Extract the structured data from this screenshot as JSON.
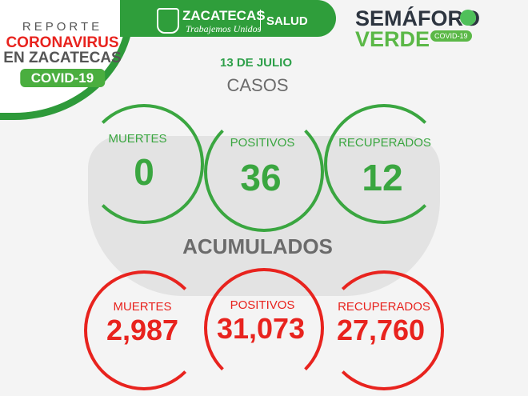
{
  "header": {
    "reporte": "REPORTE",
    "coronavirus": "CORONAVIRUS",
    "en_zacatecas": "EN ZACATECAS",
    "covid": "COVID-19",
    "gov_name": "ZACATECAS",
    "gov_slogan": "Trabajemos Unidos",
    "salud": "SALUD",
    "semaforo": "SEMÁFORO",
    "verde": "VERDE",
    "semaforo_badge": "COVID-19"
  },
  "date": "13 DE JULIO",
  "casos": {
    "title": "CASOS",
    "items": [
      {
        "label": "MUERTES",
        "value": "0"
      },
      {
        "label": "POSITIVOS",
        "value": "36"
      },
      {
        "label": "RECUPERADOS",
        "value": "12"
      }
    ]
  },
  "acumulados": {
    "title": "ACUMULADOS",
    "items": [
      {
        "label": "MUERTES",
        "value": "2,987"
      },
      {
        "label": "POSITIVOS",
        "value": "31,073"
      },
      {
        "label": "RECUPERADOS",
        "value": "27,760"
      }
    ]
  },
  "colors": {
    "green": "#3aa640",
    "red": "#e8231e",
    "gray": "#6b6b6b"
  }
}
